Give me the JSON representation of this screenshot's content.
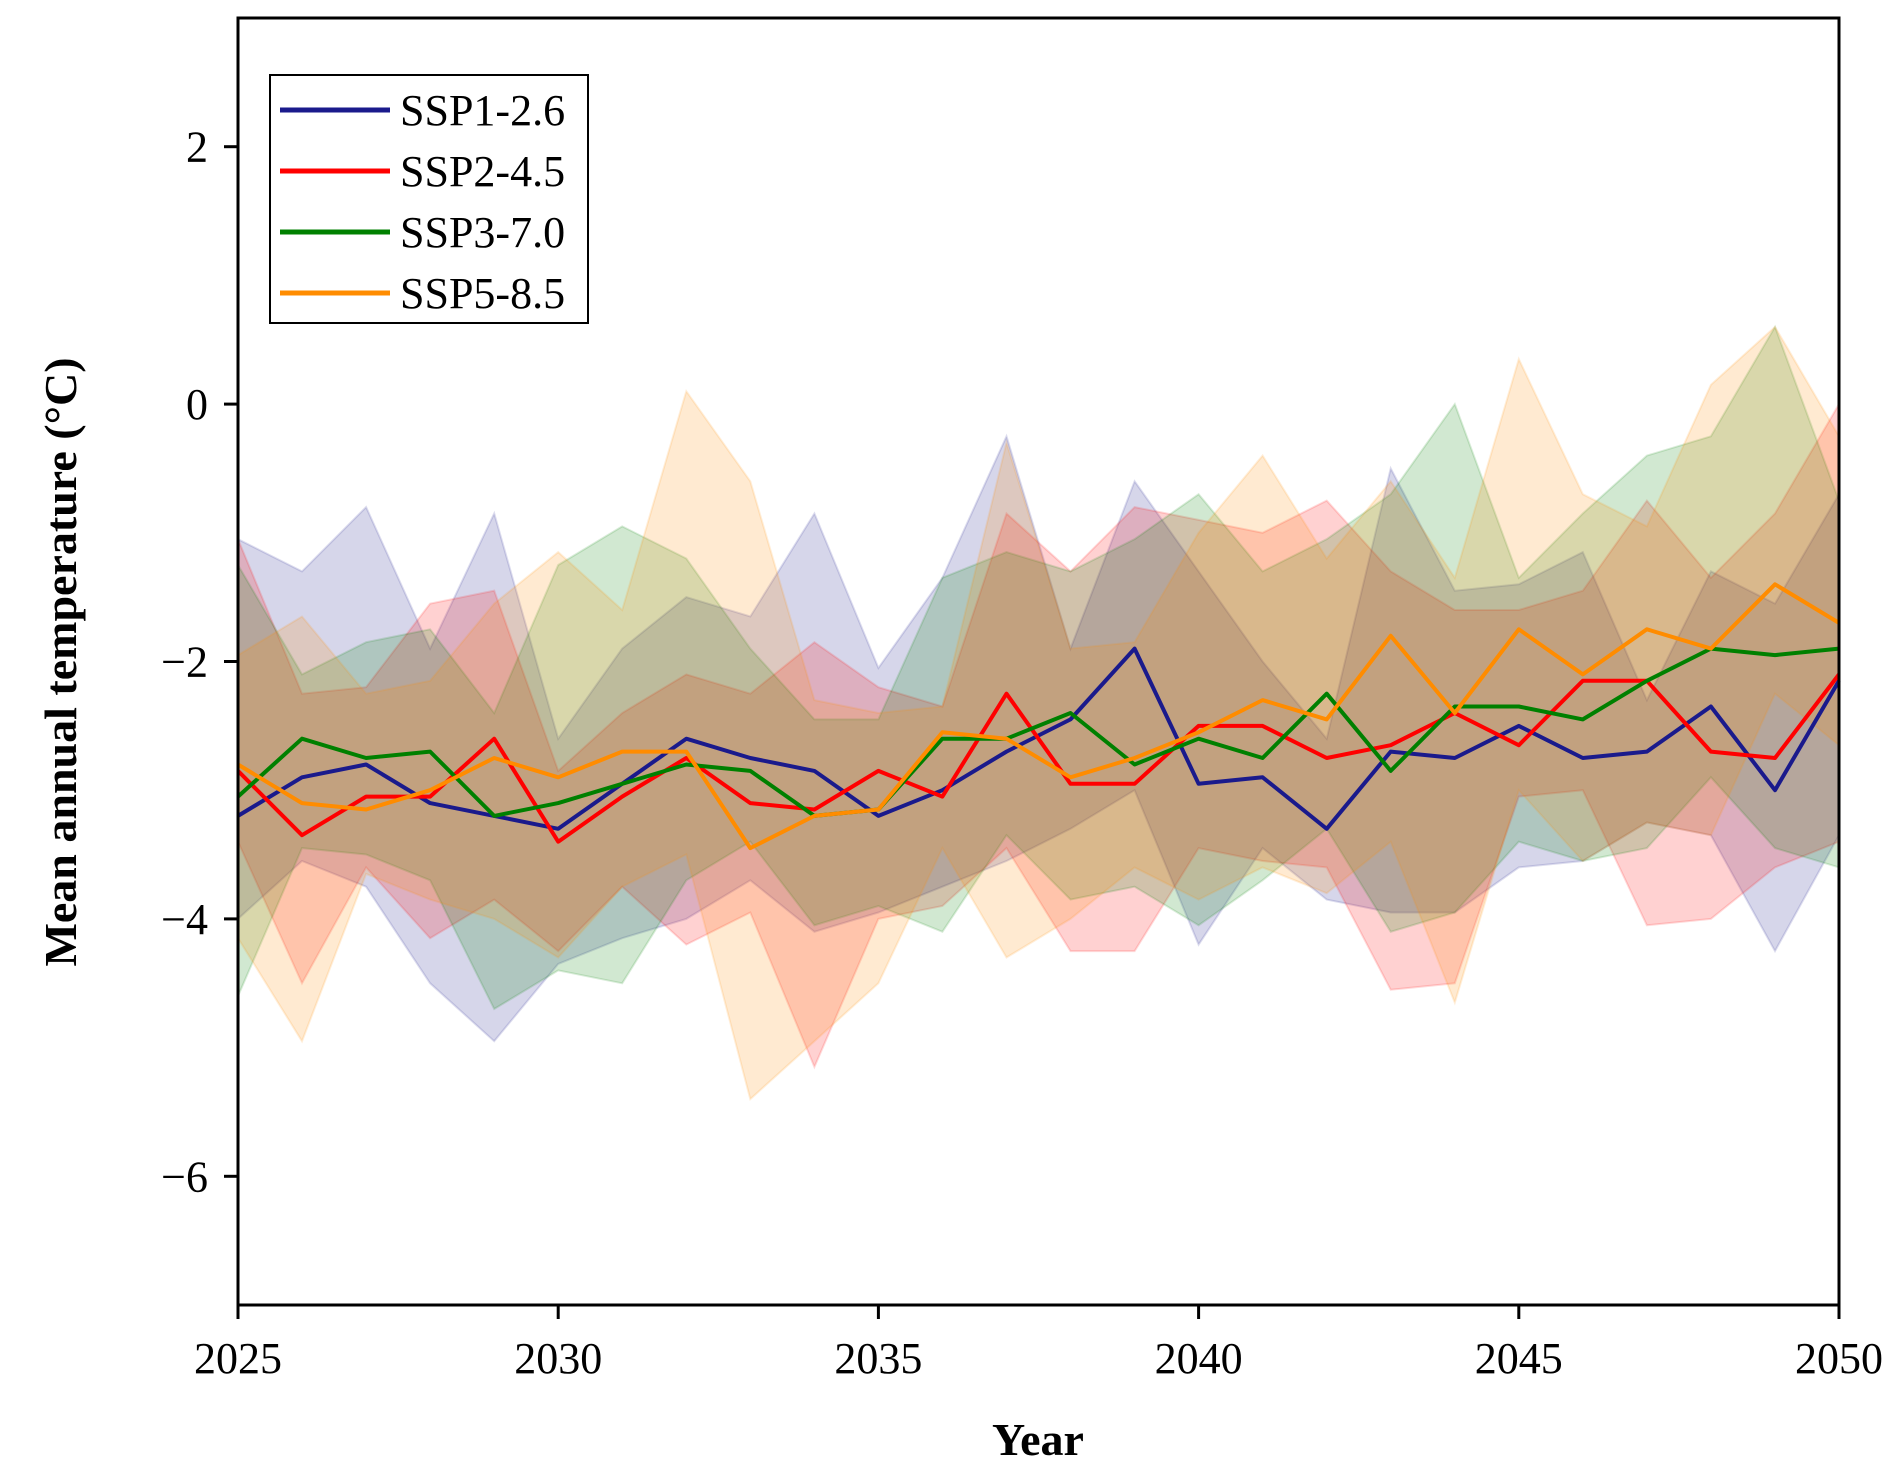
{
  "chart_data": {
    "type": "line",
    "title": "",
    "xlabel": "Year",
    "ylabel": "Mean annual temperature (°C)",
    "xlim": [
      2025,
      2050
    ],
    "ylim": [
      -7,
      3
    ],
    "xticks": [
      "2025",
      "2030",
      "2035",
      "2040",
      "2045",
      "2050"
    ],
    "yticks": [
      "2",
      "0",
      "−2",
      "−4",
      "−6"
    ],
    "grid": false,
    "legend_position": "top-left",
    "x": [
      2025,
      2026,
      2027,
      2028,
      2029,
      2030,
      2031,
      2032,
      2033,
      2034,
      2035,
      2036,
      2037,
      2038,
      2039,
      2040,
      2041,
      2042,
      2043,
      2044,
      2045,
      2046,
      2047,
      2048,
      2049,
      2050
    ],
    "series": [
      {
        "name": "SSP1-2.6",
        "color": "#1a1a8c",
        "values": [
          -3.2,
          -2.9,
          -2.8,
          -3.1,
          -3.2,
          -3.3,
          -2.95,
          -2.6,
          -2.75,
          -2.85,
          -3.2,
          -3.0,
          -2.7,
          -2.45,
          -1.9,
          -2.95,
          -2.9,
          -3.3,
          -2.7,
          -2.75,
          -2.5,
          -2.75,
          -2.7,
          -2.35,
          -3.0,
          -2.15
        ],
        "upper": [
          -1.05,
          -1.3,
          -0.8,
          -1.9,
          -0.85,
          -2.6,
          -1.9,
          -1.5,
          -1.65,
          -0.85,
          -2.05,
          -1.35,
          -0.25,
          -1.9,
          -0.6,
          -1.3,
          -2.0,
          -2.6,
          -0.5,
          -1.45,
          -1.4,
          -1.15,
          -2.3,
          -1.3,
          -1.55,
          -0.7
        ],
        "lower": [
          -4.0,
          -3.55,
          -3.75,
          -4.5,
          -4.95,
          -4.35,
          -4.15,
          -4.0,
          -3.7,
          -4.1,
          -3.95,
          -3.75,
          -3.55,
          -3.3,
          -3.0,
          -4.2,
          -3.45,
          -3.85,
          -3.95,
          -3.95,
          -3.6,
          -3.55,
          -3.25,
          -3.35,
          -4.25,
          -3.35
        ]
      },
      {
        "name": "SSP2-4.5",
        "color": "#ff0000",
        "values": [
          -2.85,
          -3.35,
          -3.05,
          -3.05,
          -2.6,
          -3.4,
          -3.05,
          -2.75,
          -3.1,
          -3.15,
          -2.85,
          -3.05,
          -2.25,
          -2.95,
          -2.95,
          -2.5,
          -2.5,
          -2.75,
          -2.65,
          -2.4,
          -2.65,
          -2.15,
          -2.15,
          -2.7,
          -2.75,
          -2.1
        ],
        "upper": [
          -1.05,
          -2.25,
          -2.2,
          -1.55,
          -1.45,
          -2.85,
          -2.4,
          -2.1,
          -2.25,
          -1.85,
          -2.2,
          -2.35,
          -0.85,
          -1.3,
          -0.8,
          -0.9,
          -1.0,
          -0.75,
          -1.3,
          -1.6,
          -1.6,
          -1.45,
          -0.75,
          -1.35,
          -0.85,
          0.0
        ],
        "lower": [
          -3.4,
          -4.5,
          -3.6,
          -4.15,
          -3.85,
          -4.25,
          -3.75,
          -4.2,
          -3.95,
          -5.15,
          -4.0,
          -3.9,
          -3.45,
          -4.25,
          -4.25,
          -3.45,
          -3.55,
          -3.6,
          -4.55,
          -4.5,
          -3.05,
          -3.0,
          -4.05,
          -4.0,
          -3.6,
          -3.4
        ]
      },
      {
        "name": "SSP3-7.0",
        "color": "#008000",
        "values": [
          -3.05,
          -2.6,
          -2.75,
          -2.7,
          -3.2,
          -3.1,
          -2.95,
          -2.8,
          -2.85,
          -3.2,
          -3.15,
          -2.6,
          -2.6,
          -2.4,
          -2.8,
          -2.6,
          -2.75,
          -2.25,
          -2.85,
          -2.35,
          -2.35,
          -2.45,
          -2.15,
          -1.9,
          -1.95,
          -1.9
        ],
        "upper": [
          -1.25,
          -2.1,
          -1.85,
          -1.75,
          -2.4,
          -1.25,
          -0.95,
          -1.2,
          -1.9,
          -2.45,
          -2.45,
          -1.35,
          -1.15,
          -1.3,
          -1.05,
          -0.7,
          -1.3,
          -1.05,
          -0.7,
          0.0,
          -1.35,
          -0.85,
          -0.4,
          -0.25,
          0.6,
          -0.75
        ],
        "lower": [
          -4.6,
          -3.45,
          -3.5,
          -3.7,
          -4.7,
          -4.4,
          -4.5,
          -3.7,
          -3.4,
          -4.05,
          -3.9,
          -4.1,
          -3.35,
          -3.85,
          -3.75,
          -4.05,
          -3.7,
          -3.3,
          -4.1,
          -3.95,
          -3.4,
          -3.55,
          -3.45,
          -2.9,
          -3.45,
          -3.6
        ]
      },
      {
        "name": "SSP5-8.5",
        "color": "#ff8c00",
        "values": [
          -2.8,
          -3.1,
          -3.15,
          -3.0,
          -2.75,
          -2.9,
          -2.7,
          -2.7,
          -3.45,
          -3.2,
          -3.15,
          -2.55,
          -2.6,
          -2.9,
          -2.75,
          -2.55,
          -2.3,
          -2.45,
          -1.8,
          -2.4,
          -1.75,
          -2.1,
          -1.75,
          -1.9,
          -1.4,
          -1.7
        ],
        "upper": [
          -1.95,
          -1.65,
          -2.25,
          -2.15,
          -1.55,
          -1.15,
          -1.6,
          0.1,
          -0.6,
          -2.3,
          -2.4,
          -2.35,
          -0.3,
          -1.9,
          -1.85,
          -1.0,
          -0.4,
          -1.2,
          -0.6,
          -1.35,
          0.35,
          -0.7,
          -0.95,
          0.15,
          0.6,
          -0.25
        ],
        "lower": [
          -4.15,
          -4.95,
          -3.65,
          -3.85,
          -4.0,
          -4.3,
          -3.75,
          -3.5,
          -5.4,
          -4.95,
          -4.5,
          -3.45,
          -4.3,
          -4.0,
          -3.6,
          -3.85,
          -3.6,
          -3.8,
          -3.4,
          -4.65,
          -3.0,
          -3.55,
          -3.25,
          -3.35,
          -2.25,
          -2.65
        ]
      }
    ]
  }
}
